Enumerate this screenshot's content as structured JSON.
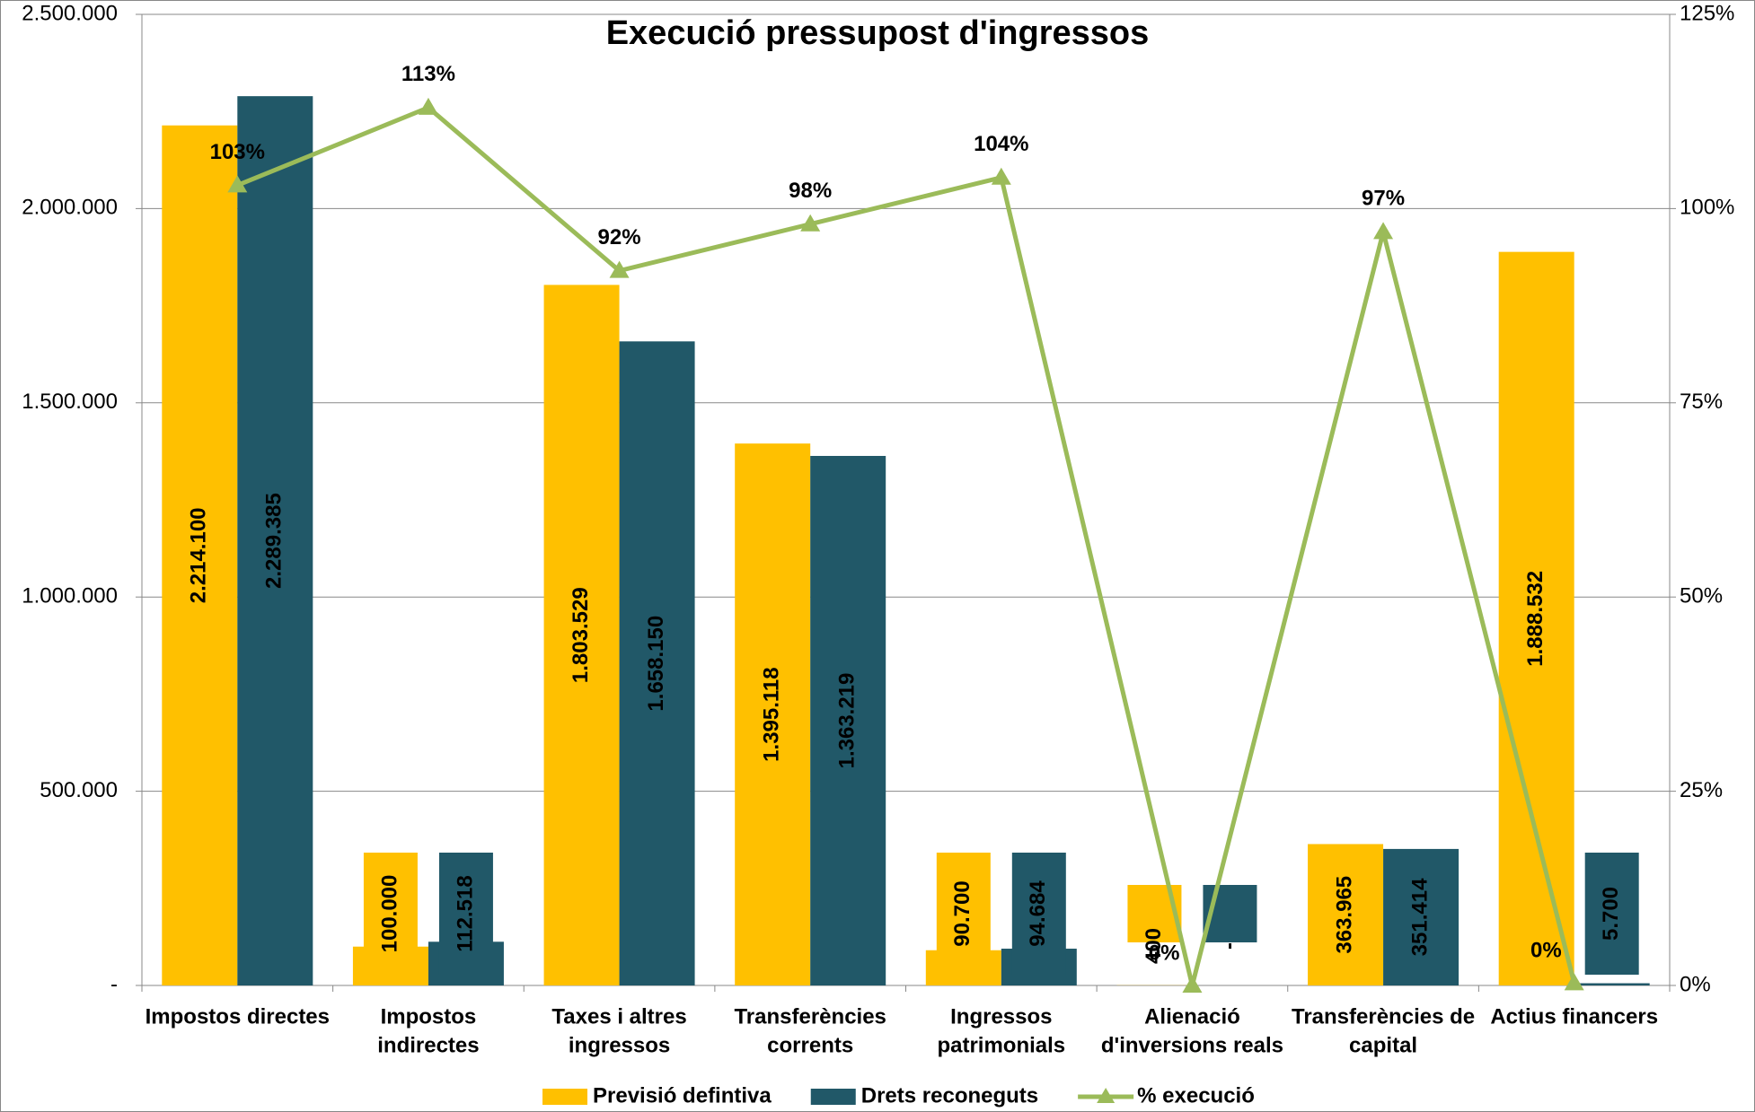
{
  "chart_data": {
    "type": "bar",
    "title": "Execució pressupost d'ingressos",
    "categories": [
      [
        "Impostos directes"
      ],
      [
        "Impostos",
        "indirectes"
      ],
      [
        "Taxes i altres",
        "ingressos"
      ],
      [
        "Transferències",
        "corrents"
      ],
      [
        "Ingressos",
        "patrimonials"
      ],
      [
        "Alienació",
        "d'inversions reals"
      ],
      [
        "Transferències de",
        "capital"
      ],
      [
        "Actius financers"
      ]
    ],
    "series": [
      {
        "name": "Previsió defintiva",
        "color": "#ffc000",
        "values": [
          2214100,
          100000,
          1803529,
          1395118,
          90700,
          400,
          363965,
          1888532
        ],
        "value_labels": [
          "2.214.100",
          "100.000",
          "1.803.529",
          "1.395.118",
          "90.700",
          "400",
          "363.965",
          "1.888.532"
        ]
      },
      {
        "name": "Drets reconeguts",
        "color": "#215868",
        "values": [
          2289385,
          112518,
          1658150,
          1363219,
          94684,
          0,
          351414,
          5700
        ],
        "value_labels": [
          "2.289.385",
          "112.518",
          "1.658.150",
          "1.363.219",
          "94.684",
          "-",
          "351.414",
          "5.700"
        ]
      },
      {
        "name": "% execució",
        "type": "line",
        "axis": "y2",
        "color": "#9bbb59",
        "values": [
          103,
          113,
          92,
          98,
          104,
          0,
          97,
          0.3
        ],
        "value_labels": [
          "103%",
          "113%",
          "92%",
          "98%",
          "104%",
          "0%",
          "97%",
          "0%"
        ]
      }
    ],
    "ylim": [
      0,
      2500000
    ],
    "yticks": [
      {
        "value": 0,
        "label": "-"
      },
      {
        "value": 500000,
        "label": "500.000"
      },
      {
        "value": 1000000,
        "label": "1.000.000"
      },
      {
        "value": 1500000,
        "label": "1.500.000"
      },
      {
        "value": 2000000,
        "label": "2.000.000"
      },
      {
        "value": 2500000,
        "label": "2.500.000"
      }
    ],
    "y2lim": [
      0,
      125
    ],
    "y2ticks": [
      {
        "value": 0,
        "label": "0%"
      },
      {
        "value": 25,
        "label": "25%"
      },
      {
        "value": 50,
        "label": "50%"
      },
      {
        "value": 75,
        "label": "75%"
      },
      {
        "value": 100,
        "label": "100%"
      },
      {
        "value": 125,
        "label": "125%"
      }
    ],
    "grid": true,
    "legend": "bottom"
  }
}
